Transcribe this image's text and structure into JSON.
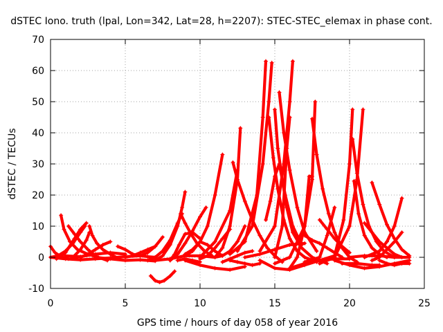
{
  "chart_data": {
    "type": "scatter",
    "title": "dSTEC Iono. truth (lpal, Lon=342, Lat=28, h=2207): STEC-STEC_elemax in phase cont.",
    "xlabel": "GPS time / hours of day 058 of year 2016",
    "ylabel": "dSTEC  / TECUs",
    "xlim": [
      0,
      25
    ],
    "ylim": [
      -10,
      70
    ],
    "xticks": [
      0,
      5,
      10,
      15,
      20,
      25
    ],
    "yticks": [
      -10,
      0,
      10,
      20,
      30,
      40,
      50,
      60,
      70
    ],
    "grid": true,
    "marker": "+",
    "color": "#ff0000",
    "series": [
      {
        "x": [
          0.0,
          0.3,
          0.7,
          1.2,
          1.8
        ],
        "y": [
          3.5,
          1.5,
          0.2,
          -0.5,
          -0.5
        ]
      },
      {
        "x": [
          0.0,
          0.5,
          1.0,
          1.5,
          2.0,
          2.3
        ],
        "y": [
          0.0,
          0.5,
          2.0,
          4.5,
          8.0,
          10.0
        ]
      },
      {
        "x": [
          0.7,
          0.9,
          1.3,
          1.8,
          2.5,
          3.2,
          3.8
        ],
        "y": [
          13.5,
          9.0,
          5.0,
          2.5,
          1.0,
          0.0,
          -1.0
        ]
      },
      {
        "x": [
          0.4,
          1.0,
          1.6,
          2.0,
          2.4
        ],
        "y": [
          -0.5,
          1.5,
          6.0,
          9.0,
          11.0
        ]
      },
      {
        "x": [
          1.2,
          1.6,
          2.0,
          2.5,
          3.0
        ],
        "y": [
          10.0,
          7.5,
          5.0,
          2.5,
          0.5
        ]
      },
      {
        "x": [
          1.0,
          2.0,
          3.0,
          4.0,
          5.0
        ],
        "y": [
          0.5,
          0.2,
          1.0,
          1.5,
          1.0
        ]
      },
      {
        "x": [
          1.5,
          2.0,
          2.4,
          2.6
        ],
        "y": [
          0.0,
          2.5,
          5.5,
          8.0
        ]
      },
      {
        "x": [
          2.6,
          2.8,
          3.1,
          3.5,
          4.0,
          4.6
        ],
        "y": [
          10.0,
          7.0,
          4.5,
          2.5,
          1.0,
          -0.5
        ]
      },
      {
        "x": [
          2.0,
          2.5,
          3.0,
          3.5,
          4.0
        ],
        "y": [
          0.0,
          1.0,
          2.5,
          4.0,
          5.0
        ]
      },
      {
        "x": [
          0.0,
          1.0,
          2.0,
          3.0,
          4.0,
          5.0,
          6.0
        ],
        "y": [
          0.0,
          -0.5,
          -0.8,
          -0.5,
          -0.2,
          0.2,
          0.5
        ]
      },
      {
        "x": [
          3.0,
          4.0,
          5.0,
          6.0,
          7.0
        ],
        "y": [
          0.0,
          -0.5,
          -1.0,
          -0.8,
          -1.2
        ]
      },
      {
        "x": [
          4.5,
          5.0,
          5.5,
          6.0,
          6.5,
          7.0
        ],
        "y": [
          3.5,
          2.5,
          1.0,
          0.5,
          0.2,
          0.0
        ]
      },
      {
        "x": [
          5.0,
          5.5,
          6.0,
          6.5,
          7.0
        ],
        "y": [
          0.0,
          0.5,
          1.5,
          2.5,
          3.5
        ]
      },
      {
        "x": [
          6.0,
          6.5,
          7.0,
          7.5
        ],
        "y": [
          0.5,
          1.5,
          3.5,
          6.5
        ]
      },
      {
        "x": [
          6.7,
          7.0,
          7.3,
          7.6,
          8.0,
          8.3
        ],
        "y": [
          -6.0,
          -7.5,
          -8.0,
          -7.5,
          -6.0,
          -4.5
        ]
      },
      {
        "x": [
          6.5,
          7.0,
          7.5,
          8.0,
          8.5,
          8.8
        ],
        "y": [
          -1.0,
          0.0,
          2.0,
          5.5,
          11.0,
          14.0
        ]
      },
      {
        "x": [
          7.0,
          7.5,
          8.0,
          8.5,
          8.8,
          9.0
        ],
        "y": [
          -1.0,
          0.5,
          4.0,
          10.0,
          16.0,
          21.0
        ]
      },
      {
        "x": [
          7.0,
          8.0,
          9.0,
          10.0,
          11.0
        ],
        "y": [
          -1.0,
          -0.5,
          0.5,
          0.5,
          0.0
        ]
      },
      {
        "x": [
          8.0,
          8.3,
          8.6,
          9.0,
          9.5,
          10.0
        ],
        "y": [
          -1.0,
          1.0,
          4.0,
          7.5,
          8.0,
          6.0
        ]
      },
      {
        "x": [
          8.0,
          8.5,
          9.0,
          9.5,
          10.0,
          10.4
        ],
        "y": [
          -1.0,
          1.0,
          4.5,
          8.5,
          13.0,
          16.0
        ]
      },
      {
        "x": [
          8.5,
          9.0,
          9.5,
          10.0,
          10.5,
          11.0,
          11.5
        ],
        "y": [
          0.0,
          0.5,
          2.0,
          5.0,
          4.0,
          2.0,
          0.5
        ]
      },
      {
        "x": [
          8.7,
          9.0,
          9.4,
          9.8,
          10.3,
          10.8
        ],
        "y": [
          14.0,
          11.0,
          7.5,
          4.5,
          2.0,
          0.5
        ]
      },
      {
        "x": [
          8.5,
          9.0,
          9.5,
          10.0
        ],
        "y": [
          -1.0,
          -0.5,
          -1.0,
          -1.5
        ]
      },
      {
        "x": [
          10.0,
          10.5,
          11.0,
          11.5,
          12.0
        ],
        "y": [
          -0.5,
          0.5,
          3.0,
          6.0,
          9.0
        ]
      },
      {
        "x": [
          9.0,
          9.5,
          10.0,
          10.5,
          11.0,
          11.5
        ],
        "y": [
          1.0,
          2.5,
          5.0,
          10.0,
          20.0,
          33.0
        ]
      },
      {
        "x": [
          9.0,
          10.0,
          11.0,
          12.0,
          13.0
        ],
        "y": [
          -1.0,
          -2.5,
          -3.5,
          -4.0,
          -3.0
        ]
      },
      {
        "x": [
          11.0,
          11.5,
          12.0,
          12.5,
          13.0
        ],
        "y": [
          0.0,
          0.5,
          2.0,
          5.0,
          10.0
        ]
      },
      {
        "x": [
          10.0,
          11.0,
          12.0,
          12.5
        ],
        "y": [
          0.0,
          5.0,
          15.0,
          28.0
        ]
      },
      {
        "x": [
          11.0,
          11.5,
          12.0,
          12.5,
          12.7
        ],
        "y": [
          0.0,
          3.0,
          10.0,
          25.0,
          41.5
        ]
      },
      {
        "x": [
          12.2,
          12.5,
          13.0,
          13.5,
          14.0,
          14.5,
          15.0,
          15.5
        ],
        "y": [
          30.5,
          25.0,
          18.0,
          12.0,
          7.0,
          3.0,
          0.5,
          -1.5
        ]
      },
      {
        "x": [
          11.5,
          12.0,
          12.5,
          13.0,
          13.5
        ],
        "y": [
          -1.5,
          -0.5,
          0.5,
          1.5,
          2.0
        ]
      },
      {
        "x": [
          12.0,
          12.5,
          13.0,
          13.5,
          14.0
        ],
        "y": [
          -1.0,
          -1.5,
          -2.0,
          -2.5,
          -2.0
        ]
      },
      {
        "x": [
          12.0,
          13.0,
          13.8,
          14.2,
          14.4
        ],
        "y": [
          1.0,
          5.0,
          20.0,
          45.0,
          63.0
        ]
      },
      {
        "x": [
          12.5,
          13.5,
          14.2,
          14.6,
          14.8
        ],
        "y": [
          2.0,
          10.0,
          30.0,
          50.0,
          62.5
        ]
      },
      {
        "x": [
          14.6,
          14.9,
          15.2,
          15.6,
          16.0,
          16.5,
          17.0,
          17.8
        ],
        "y": [
          45.0,
          32.0,
          22.0,
          12.0,
          6.0,
          2.0,
          0.0,
          -1.5
        ]
      },
      {
        "x": [
          14.4,
          14.7,
          15.0,
          15.3,
          15.7,
          16.2,
          16.8
        ],
        "y": [
          12.0,
          18.0,
          26.0,
          30.0,
          20.0,
          10.0,
          4.0
        ]
      },
      {
        "x": [
          15.0,
          15.2,
          15.5,
          15.8,
          16.2,
          16.8,
          17.5,
          18.5
        ],
        "y": [
          47.5,
          35.0,
          25.0,
          16.0,
          8.0,
          3.0,
          0.0,
          -2.0
        ]
      },
      {
        "x": [
          15.3,
          15.6,
          16.0,
          16.5,
          17.0,
          17.8
        ],
        "y": [
          53.0,
          40.0,
          28.0,
          16.0,
          8.0,
          2.0
        ]
      },
      {
        "x": [
          14.0,
          15.0,
          15.6,
          16.0,
          16.2
        ],
        "y": [
          2.0,
          10.0,
          30.0,
          50.0,
          63.0
        ]
      },
      {
        "x": [
          15.0,
          15.5,
          15.8,
          16.0
        ],
        "y": [
          0.0,
          10.0,
          35.0,
          45.0
        ]
      },
      {
        "x": [
          13.0,
          14.0,
          15.0,
          16.0,
          17.0
        ],
        "y": [
          0.0,
          1.0,
          2.5,
          4.0,
          4.5
        ]
      },
      {
        "x": [
          14.0,
          15.0,
          16.0,
          17.0,
          18.0,
          19.0
        ],
        "y": [
          -1.0,
          -3.5,
          -4.0,
          -2.5,
          -1.0,
          0.0
        ]
      },
      {
        "x": [
          15.0,
          16.0,
          17.0,
          17.3,
          17.5
        ],
        "y": [
          -2.0,
          0.0,
          10.0,
          26.0,
          26.0
        ]
      },
      {
        "x": [
          16.0,
          16.5,
          17.0,
          17.5,
          17.7
        ],
        "y": [
          -3.5,
          0.0,
          10.0,
          25.0,
          50.0
        ]
      },
      {
        "x": [
          17.5,
          17.8,
          18.2,
          18.6,
          19.0,
          19.5,
          20.0,
          20.5
        ],
        "y": [
          44.5,
          33.0,
          22.0,
          14.0,
          8.0,
          3.0,
          0.0,
          -1.5
        ]
      },
      {
        "x": [
          17.0,
          17.5,
          18.0,
          18.5,
          19.0,
          19.5
        ],
        "y": [
          7.0,
          5.5,
          4.5,
          3.0,
          1.5,
          0.0
        ]
      },
      {
        "x": [
          18.0,
          18.5,
          19.0,
          19.5,
          20.0
        ],
        "y": [
          12.0,
          9.0,
          6.0,
          3.5,
          1.5
        ]
      },
      {
        "x": [
          16.0,
          17.0,
          18.0,
          19.0,
          20.0
        ],
        "y": [
          -3.5,
          -2.0,
          -1.0,
          -0.5,
          -0.5
        ]
      },
      {
        "x": [
          17.0,
          18.0,
          18.5,
          19.0
        ],
        "y": [
          -1.5,
          0.0,
          7.0,
          16.0
        ]
      },
      {
        "x": [
          18.0,
          19.0,
          20.0,
          20.5,
          20.9
        ],
        "y": [
          -2.0,
          0.0,
          10.0,
          25.0,
          47.5
        ]
      },
      {
        "x": [
          18.0,
          19.0,
          19.6,
          20.0,
          20.2
        ],
        "y": [
          -1.0,
          0.5,
          12.0,
          30.0,
          47.5
        ]
      },
      {
        "x": [
          20.2,
          20.5,
          20.9,
          21.3,
          21.8,
          22.3,
          23.0
        ],
        "y": [
          38.0,
          27.0,
          17.0,
          10.0,
          5.0,
          2.0,
          0.0
        ]
      },
      {
        "x": [
          20.3,
          20.6,
          21.0,
          21.5,
          22.0,
          22.5
        ],
        "y": [
          24.5,
          14.0,
          7.0,
          3.0,
          1.0,
          0.0
        ]
      },
      {
        "x": [
          19.0,
          20.0,
          21.0,
          22.0,
          23.0,
          24.0
        ],
        "y": [
          -1.0,
          -2.5,
          -3.5,
          -3.0,
          -2.0,
          -1.0
        ]
      },
      {
        "x": [
          19.5,
          20.5,
          21.5,
          22.0
        ],
        "y": [
          -2.0,
          -2.0,
          -2.5,
          -2.5
        ]
      },
      {
        "x": [
          21.0,
          21.5,
          22.0,
          22.5,
          23.0,
          23.5
        ],
        "y": [
          11.0,
          8.0,
          5.0,
          3.0,
          1.0,
          0.0
        ]
      },
      {
        "x": [
          21.5,
          22.0,
          22.5,
          23.0,
          23.5,
          24.0
        ],
        "y": [
          24.0,
          17.0,
          10.5,
          6.0,
          2.5,
          0.5
        ]
      },
      {
        "x": [
          21.0,
          22.0,
          22.5,
          23.0,
          23.5
        ],
        "y": [
          0.0,
          2.0,
          5.0,
          10.0,
          19.0
        ]
      },
      {
        "x": [
          21.5,
          22.0,
          22.5,
          23.0,
          23.5
        ],
        "y": [
          -1.0,
          0.0,
          2.5,
          5.0,
          8.0
        ]
      },
      {
        "x": [
          22.0,
          22.5,
          23.0,
          23.5,
          24.0
        ],
        "y": [
          -1.0,
          -2.0,
          -2.5,
          -2.0,
          -2.0
        ]
      },
      {
        "x": [
          20.0,
          21.0,
          22.0,
          23.0,
          24.0
        ],
        "y": [
          0.0,
          0.5,
          0.5,
          0.0,
          0.0
        ]
      }
    ]
  }
}
